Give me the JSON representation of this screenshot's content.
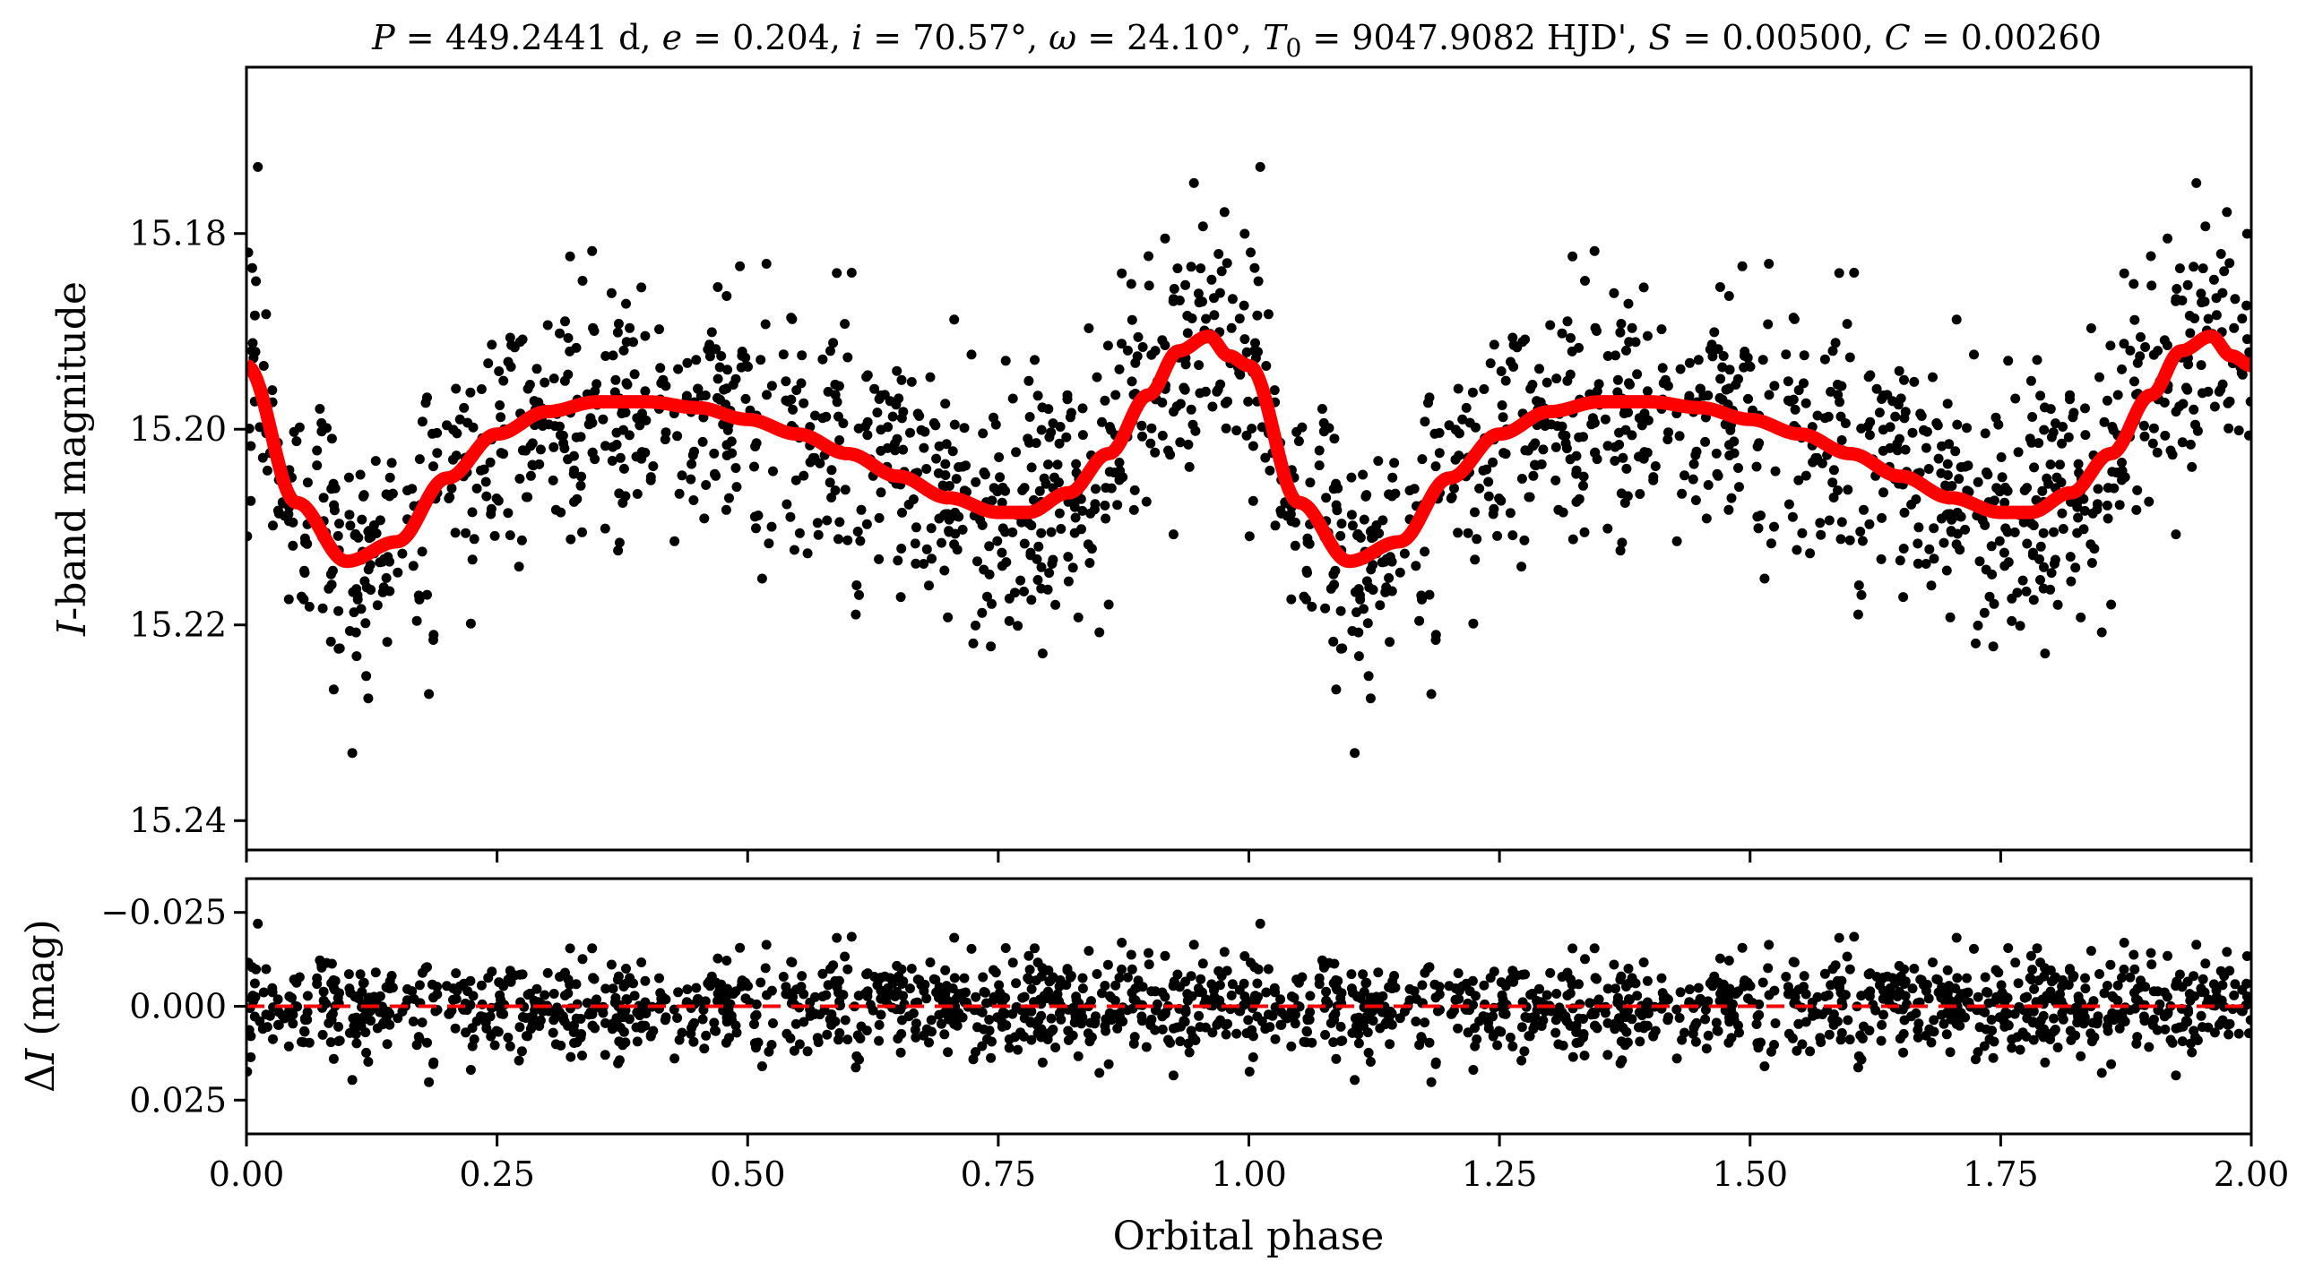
{
  "chart_data": [
    {
      "type": "scatter",
      "panel": "top",
      "title": "P = 449.2441 d, e = 0.204, i = 70.57°, ω = 24.10°, T0 = 9047.9082 HJD', S = 0.00500, C = 0.00260",
      "xlabel": "",
      "ylabel": "I-band magnitude",
      "xlim": [
        0.0,
        2.0
      ],
      "ylim": [
        15.243,
        15.163
      ],
      "y_inverted": true,
      "ytick_labels": [
        "15.18",
        "15.20",
        "15.22",
        "15.24"
      ],
      "yticks": [
        15.18,
        15.2,
        15.22,
        15.24
      ],
      "xticks": [
        0.0,
        0.25,
        0.5,
        0.75,
        1.0,
        1.25,
        1.5,
        1.75,
        2.0
      ],
      "marker_color": "#000000",
      "model_color": "#ff0000",
      "model": {
        "description_points_x": [
          0.0,
          0.05,
          0.1,
          0.15,
          0.2,
          0.25,
          0.3,
          0.35,
          0.4,
          0.45,
          0.5,
          0.55,
          0.6,
          0.65,
          0.7,
          0.75,
          0.78,
          0.82,
          0.86,
          0.9,
          0.93,
          0.96,
          0.98,
          1.0
        ],
        "description_points_y": [
          15.1935,
          15.2075,
          15.2135,
          15.2115,
          15.205,
          15.2005,
          15.1982,
          15.1972,
          15.1972,
          15.1978,
          15.199,
          15.2005,
          15.2025,
          15.2048,
          15.207,
          15.2085,
          15.2085,
          15.2065,
          15.2025,
          15.1965,
          15.192,
          15.1905,
          15.1925,
          15.1935
        ]
      },
      "data_summary": {
        "n_points_shown": 900,
        "scatter_about_model_mag": 0.008,
        "phase_range": [
          0.0,
          2.0
        ]
      }
    },
    {
      "type": "scatter",
      "panel": "bottom",
      "xlabel": "Orbital phase",
      "ylabel": "ΔI (mag)",
      "xlim": [
        0.0,
        2.0
      ],
      "ylim": [
        0.034,
        -0.034
      ],
      "y_inverted": true,
      "ytick_labels": [
        "−0.025",
        "0.000",
        "0.025"
      ],
      "yticks": [
        -0.025,
        0.0,
        0.025
      ],
      "xtick_labels": [
        "0.00",
        "0.25",
        "0.50",
        "0.75",
        "1.00",
        "1.25",
        "1.50",
        "1.75",
        "2.00"
      ],
      "xticks": [
        0.0,
        0.25,
        0.5,
        0.75,
        1.0,
        1.25,
        1.5,
        1.75,
        2.0
      ],
      "zero_line": {
        "y": 0.0,
        "color": "#ff0000",
        "style": "dashed"
      },
      "marker_color": "#000000"
    }
  ],
  "title_parts": {
    "p_sym": "P",
    "p_val": " = 449.2441 d, ",
    "e_sym": "e",
    "e_val": " = 0.204, ",
    "i_sym": "i",
    "i_val": " = 70.57°, ",
    "w_sym": "ω",
    "w_val": " = 24.10°, ",
    "t_sym": "T",
    "t_sub": "0",
    "t_val": " = 9047.9082 HJD', ",
    "s_sym": "S",
    "s_val": " = 0.00500, ",
    "c_sym": "C",
    "c_val": " = 0.00260"
  },
  "top_ylabel_parts": {
    "italic": "I",
    "rest": "-band magnitude"
  },
  "bottom_ylabel_parts": {
    "delta": "Δ",
    "italic": "I",
    "rest": " (mag)"
  }
}
